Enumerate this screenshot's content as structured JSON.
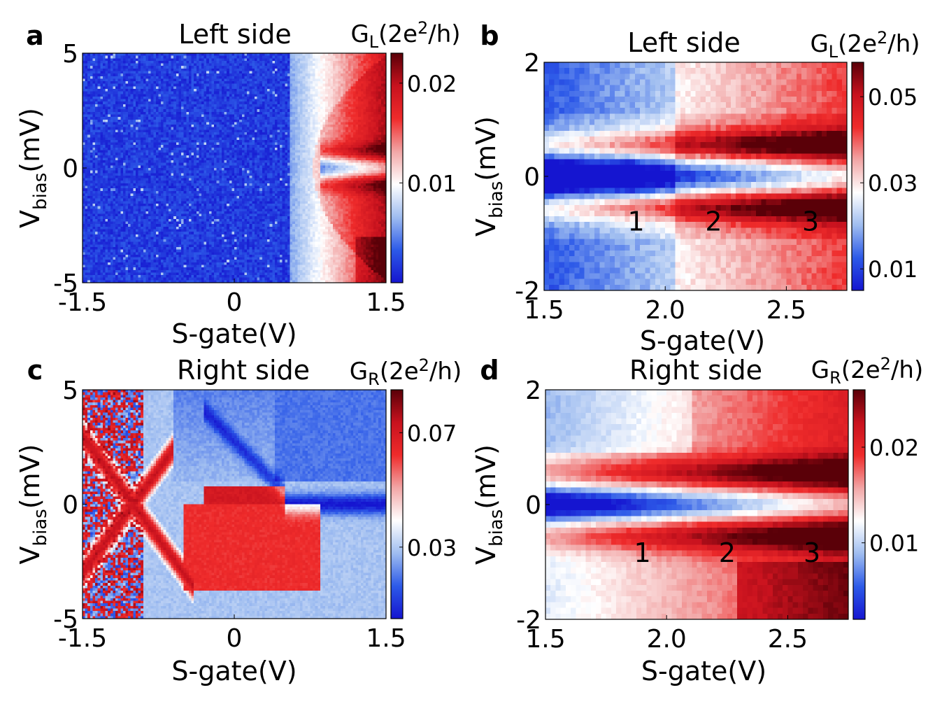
{
  "chart_data": [
    {
      "type": "heatmap",
      "panel": "a",
      "title": "Left side",
      "xlabel": "S-gate(V)",
      "ylabel": {
        "base": "V",
        "sub": "bias",
        "unit": "(mV)"
      },
      "xlim": [
        -1.5,
        1.5
      ],
      "ylim": [
        -5,
        5
      ],
      "x_ticks": [
        -1.5,
        0,
        1.5
      ],
      "x_tick_labels": [
        "-1.5",
        "0",
        "1.5"
      ],
      "y_ticks": [
        5,
        0,
        -5
      ],
      "y_tick_labels": [
        "5",
        "0",
        "-5"
      ],
      "colorbar": {
        "label": {
          "base": "G",
          "sub": "L",
          "unit": "(2e",
          "sup": "2",
          "tail": "/h)"
        },
        "range": [
          0,
          0.023
        ],
        "ticks": [
          0.02,
          0.01
        ],
        "tick_labels": [
          "0.02",
          "0.01"
        ]
      },
      "colormap": [
        "#1515d0",
        "#2d5ae8",
        "#9fbdf0",
        "#ffffff",
        "#f2a6a6",
        "#ef2b2b",
        "#c8121e",
        "#5a0008"
      ],
      "annotations": [],
      "description_values": {
        "onset_gate_V": 0.75,
        "zero_bias_dip_gate_range_V": [
          0.9,
          1.5
        ]
      }
    },
    {
      "type": "heatmap",
      "panel": "b",
      "title": "Left side",
      "xlabel": "S-gate(V)",
      "ylabel": {
        "base": "V",
        "sub": "bias",
        "unit": "(mV)"
      },
      "xlim": [
        1.5,
        2.75
      ],
      "ylim": [
        -2,
        2
      ],
      "x_ticks": [
        1.5,
        2.0,
        2.5
      ],
      "x_tick_labels": [
        "1.5",
        "2.0",
        "2.5"
      ],
      "y_ticks": [
        2,
        0,
        -2
      ],
      "y_tick_labels": [
        "2",
        "0",
        "-2"
      ],
      "colorbar": {
        "label": {
          "base": "G",
          "sub": "L",
          "unit": "(2e",
          "sup": "2",
          "tail": "/h)"
        },
        "range": [
          0.005,
          0.058
        ],
        "ticks": [
          0.05,
          0.03,
          0.01
        ],
        "tick_labels": [
          "0.05",
          "0.03",
          "0.01"
        ]
      },
      "colormap": [
        "#1515d0",
        "#2d5ae8",
        "#9fbdf0",
        "#ffffff",
        "#f2a6a6",
        "#ef2b2b",
        "#c8121e",
        "#5a0008"
      ],
      "annotations": [
        {
          "text": "1",
          "x": 1.88,
          "y": -0.95
        },
        {
          "text": "2",
          "x": 2.2,
          "y": -0.95
        },
        {
          "text": "3",
          "x": 2.6,
          "y": -0.95
        }
      ]
    },
    {
      "type": "heatmap",
      "panel": "c",
      "title": "Right side",
      "xlabel": "S-gate(V)",
      "ylabel": {
        "base": "V",
        "sub": "bias",
        "unit": "(mV)"
      },
      "xlim": [
        -1.5,
        1.5
      ],
      "ylim": [
        -5,
        5
      ],
      "x_ticks": [
        -1.5,
        0,
        1.5
      ],
      "x_tick_labels": [
        "-1.5",
        "0",
        "1.5"
      ],
      "y_ticks": [
        5,
        0,
        -5
      ],
      "y_tick_labels": [
        "5",
        "0",
        "-5"
      ],
      "colorbar": {
        "label": {
          "base": "G",
          "sub": "R",
          "unit": "(2e",
          "sup": "2",
          "tail": "/h)"
        },
        "range": [
          0.005,
          0.085
        ],
        "ticks": [
          0.07,
          0.03
        ],
        "tick_labels": [
          "0.07",
          "0.03"
        ]
      },
      "colormap": [
        "#1515d0",
        "#2d5ae8",
        "#9fbdf0",
        "#ffffff",
        "#f2a6a6",
        "#ef2b2b",
        "#c8121e",
        "#5a0008"
      ],
      "annotations": []
    },
    {
      "type": "heatmap",
      "panel": "d",
      "title": "Right side",
      "xlabel": "S-gate(V)",
      "ylabel": {
        "base": "V",
        "sub": "bias",
        "unit": "(mV)"
      },
      "xlim": [
        1.5,
        2.75
      ],
      "ylim": [
        -2,
        2
      ],
      "x_ticks": [
        1.5,
        2.0,
        2.5
      ],
      "x_tick_labels": [
        "1.5",
        "2.0",
        "2.5"
      ],
      "y_ticks": [
        2,
        0,
        -2
      ],
      "y_tick_labels": [
        "2",
        "0",
        "-2"
      ],
      "colorbar": {
        "label": {
          "base": "G",
          "sub": "R",
          "unit": "(2e",
          "sup": "2",
          "tail": "/h)"
        },
        "range": [
          0.002,
          0.026
        ],
        "ticks": [
          0.02,
          0.01
        ],
        "tick_labels": [
          "0.02",
          "0.01"
        ]
      },
      "colormap": [
        "#1515d0",
        "#2d5ae8",
        "#9fbdf0",
        "#ffffff",
        "#f2a6a6",
        "#ef2b2b",
        "#c8121e",
        "#5a0008"
      ],
      "annotations": [
        {
          "text": "1",
          "x": 1.9,
          "y": -1.0
        },
        {
          "text": "2",
          "x": 2.25,
          "y": -1.0
        },
        {
          "text": "3",
          "x": 2.6,
          "y": -1.0
        }
      ]
    }
  ]
}
